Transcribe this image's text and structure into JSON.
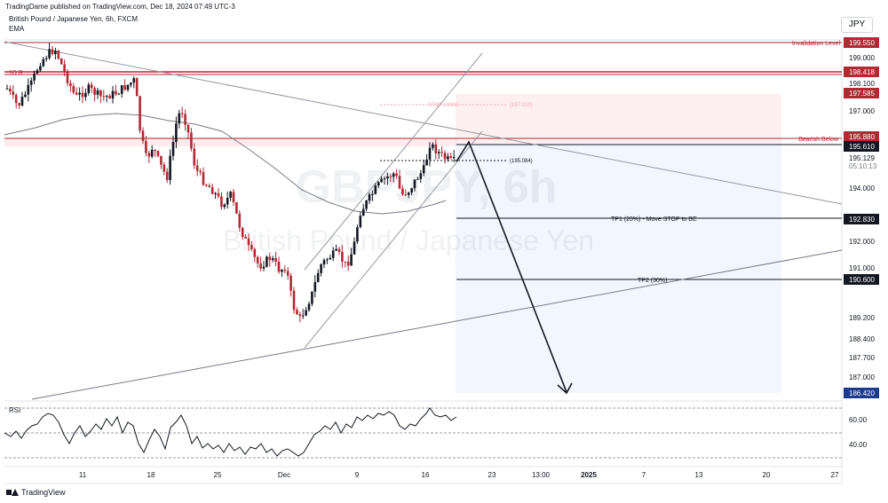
{
  "header": {
    "published": "TradingDame published on TradingView.com, Dec 18, 2024 07:49 UTC-3",
    "symbol": "British Pound / Japanese Yen, 6h, FXCM",
    "indicator": "EMA",
    "currency": "JPY"
  },
  "watermark": {
    "line1": "GBPJPY, 6h",
    "line2": "British Pound / Japanese Yen"
  },
  "footer": {
    "brand": "TradingView"
  },
  "chart_data": {
    "type": "candlestick",
    "symbol": "GBPJPY",
    "timeframe": "6h",
    "y_ticks": [
      "199.000",
      "198.100",
      "197.000",
      "194.000",
      "192.000",
      "191.000",
      "189.200",
      "188.400",
      "187.700",
      "187.000"
    ],
    "x_ticks": [
      "11",
      "18",
      "25",
      "Dec",
      "9",
      "16",
      "23",
      "13:00",
      "2025",
      "7",
      "13",
      "20",
      "27"
    ],
    "price_tags": [
      {
        "value": "199.550",
        "label": "Invalidation Level",
        "color": "#b22833"
      },
      {
        "value": "198.418",
        "label": "1D R",
        "color": "#b22833"
      },
      {
        "value": "197.585",
        "label": "",
        "color": "#b22833"
      },
      {
        "value": "195.880",
        "label": "Bearish Below",
        "color": "#b22833"
      },
      {
        "value": "195.610",
        "label": "",
        "color": "#131722"
      },
      {
        "value": "195.129",
        "label": "",
        "color": "#131722"
      },
      {
        "value": "192.830",
        "label": "TP1 (20%) - Move STOP to BE",
        "color": "#131722"
      },
      {
        "value": "190.600",
        "label": "TP2 (30%)",
        "color": "#131722"
      },
      {
        "value": "186.420",
        "label": "",
        "color": "#1e3a8a"
      }
    ],
    "countdown": "05:10:13",
    "position_labels": {
      "stop_loss": "STOP LOSS",
      "stop_value": "(197.210)",
      "entry_value": "(195.084)"
    },
    "rsi": {
      "label": "RSI",
      "ticks": [
        "60.00",
        "40.00"
      ]
    },
    "ema_color": "#787b86",
    "bull_color": "#131722",
    "bear_color": "#b22833"
  }
}
